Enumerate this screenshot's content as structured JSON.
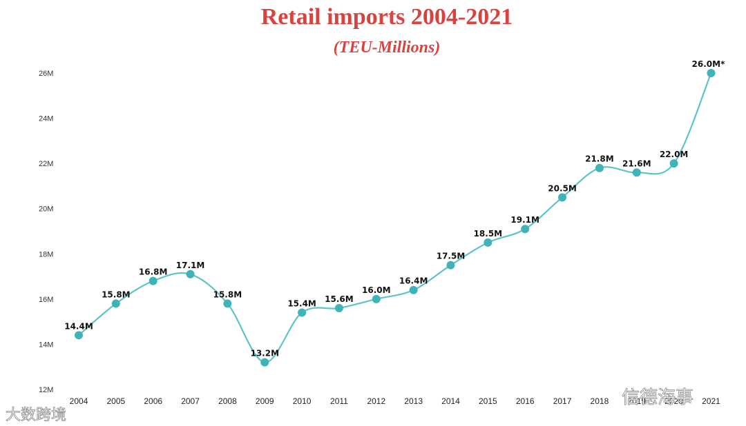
{
  "chart_data": {
    "type": "line",
    "title": "Retail imports 2004-2021",
    "subtitle": "(TEU-Millions)",
    "xlabel": "",
    "ylabel": "",
    "categories": [
      "2004",
      "2005",
      "2006",
      "2007",
      "2008",
      "2009",
      "2010",
      "2011",
      "2012",
      "2013",
      "2014",
      "2015",
      "2016",
      "2017",
      "2018",
      "2019",
      "2020",
      "2021"
    ],
    "series": [
      {
        "values": [
          14.4,
          15.8,
          16.8,
          17.1,
          15.8,
          13.2,
          15.4,
          15.6,
          16.0,
          16.4,
          17.5,
          18.5,
          19.1,
          20.5,
          21.8,
          21.6,
          22.0,
          26.0
        ],
        "labels": [
          "14.4M",
          "15.8M",
          "16.8M",
          "17.1M",
          "15.8M",
          "13.2M",
          "15.4M",
          "15.6M",
          "16.0M",
          "16.4M",
          "17.5M",
          "18.5M",
          "19.1M",
          "20.5M",
          "21.8M",
          "21.6M",
          "22.0M",
          "26.0M*"
        ]
      }
    ],
    "ylim": [
      12,
      26
    ],
    "yticks": [
      12,
      14,
      16,
      18,
      20,
      22,
      24,
      26
    ],
    "ytick_labels": [
      "12M",
      "14M",
      "16M",
      "18M",
      "20M",
      "22M",
      "24M",
      "26M"
    ],
    "grid": false,
    "legend": "none",
    "colors": {
      "title": "#d9433f",
      "line": "#5cc4c7",
      "marker": "#3fb3b8"
    }
  },
  "watermarks": {
    "left": "大数跨境",
    "right": "信德海事"
  }
}
